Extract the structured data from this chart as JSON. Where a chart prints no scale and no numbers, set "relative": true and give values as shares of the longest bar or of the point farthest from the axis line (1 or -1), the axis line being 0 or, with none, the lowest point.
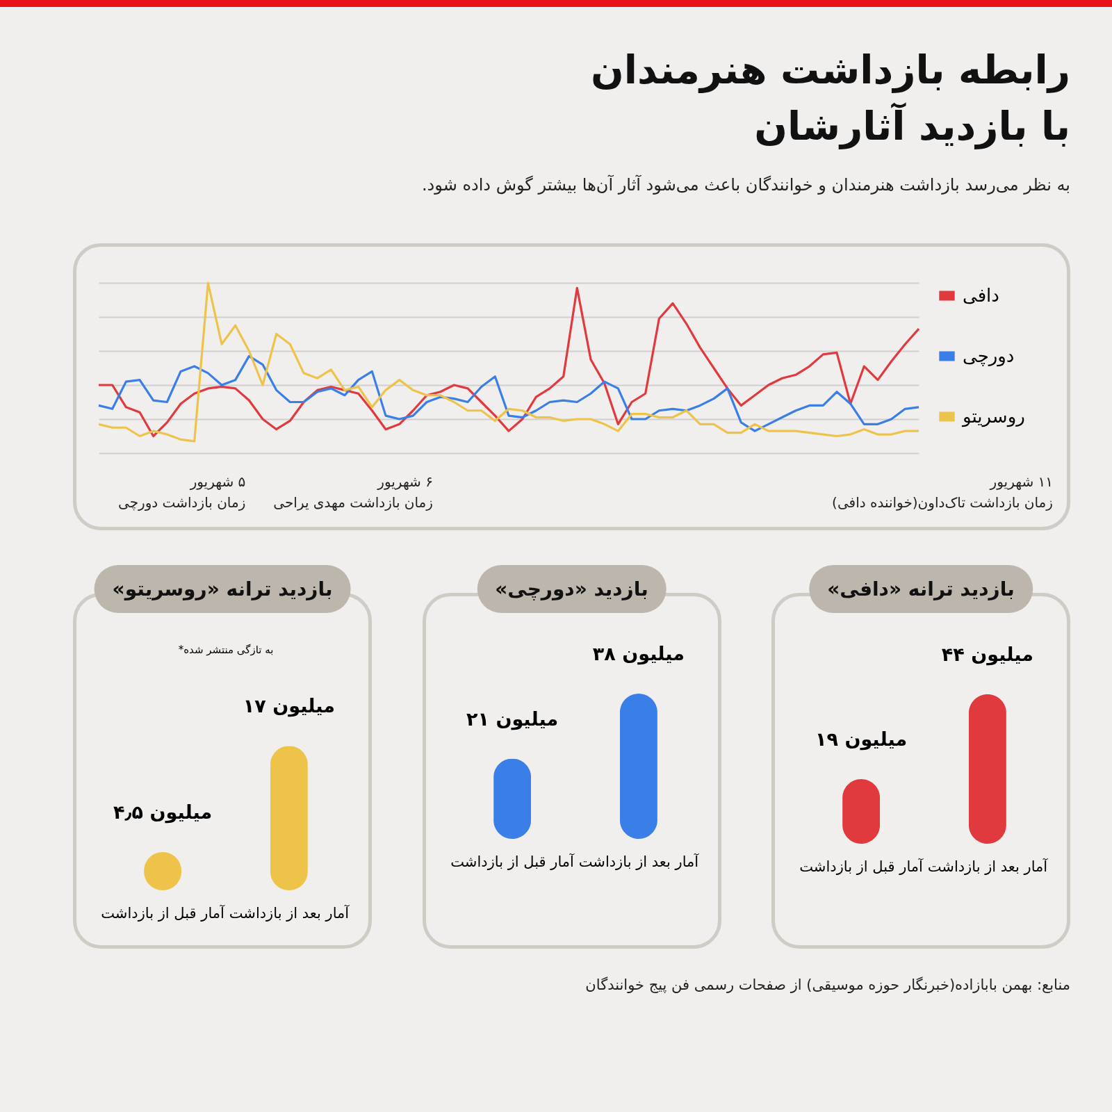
{
  "chart_data": [
    {
      "type": "line",
      "title": "رابطه بازداشت هنرمندان با بازدید آثارشان",
      "subtitle": "به نظر می‌رسد بازداشت هنرمندان و خوانندگان باعث می‌شود آثار آن‌ها بیشتر گوش داده شود.",
      "relative": true,
      "grid": "y",
      "legend": "right",
      "line_style": "solid",
      "categories": [
        null,
        null,
        null,
        null,
        null,
        null,
        null,
        null,
        null,
        null,
        null,
        null,
        null,
        null,
        null,
        null,
        null,
        null,
        null,
        null,
        null,
        null,
        null,
        null,
        null,
        null,
        null,
        null,
        null,
        null,
        null,
        null,
        null,
        null,
        null,
        null,
        null,
        null,
        null,
        null,
        null,
        null,
        null,
        null,
        null,
        null,
        null,
        null,
        null,
        null,
        null,
        null,
        null,
        null,
        null,
        null,
        null,
        null,
        null,
        null,
        null
      ],
      "series": [
        {
          "name": "دافی",
          "color": "#e0393e",
          "values": [
            0.4,
            0.4,
            0.27,
            0.24,
            0.1,
            0.18,
            0.29,
            0.35,
            0.38,
            0.39,
            0.38,
            0.31,
            0.2,
            0.14,
            0.19,
            0.3,
            0.37,
            0.39,
            0.37,
            0.35,
            0.25,
            0.14,
            0.17,
            0.25,
            0.34,
            0.36,
            0.4,
            0.38,
            0.3,
            0.22,
            0.13,
            0.2,
            0.33,
            0.38,
            0.45,
            0.97,
            0.55,
            0.41,
            0.17,
            0.3,
            0.35,
            0.79,
            0.88,
            0.76,
            0.62,
            0.5,
            0.38,
            0.28,
            0.34,
            0.4,
            0.44,
            0.46,
            0.51,
            0.58,
            0.59,
            0.29,
            0.51,
            0.43,
            0.54,
            0.64,
            0.73
          ]
        },
        {
          "name": "دورچی",
          "color": "#3a7ee8",
          "values": [
            0.28,
            0.26,
            0.42,
            0.43,
            0.31,
            0.3,
            0.48,
            0.51,
            0.47,
            0.4,
            0.43,
            0.57,
            0.52,
            0.37,
            0.3,
            0.3,
            0.36,
            0.38,
            0.34,
            0.43,
            0.48,
            0.22,
            0.2,
            0.22,
            0.3,
            0.33,
            0.32,
            0.3,
            0.39,
            0.45,
            0.22,
            0.21,
            0.25,
            0.3,
            0.31,
            0.3,
            0.35,
            0.42,
            0.38,
            0.2,
            0.2,
            0.25,
            0.26,
            0.25,
            0.28,
            0.32,
            0.38,
            0.18,
            0.13,
            0.17,
            0.21,
            0.25,
            0.28,
            0.28,
            0.36,
            0.29,
            0.17,
            0.17,
            0.2,
            0.26,
            0.27
          ]
        },
        {
          "name": "روسریتو",
          "color": "#eec34a",
          "values": [
            0.17,
            0.15,
            0.15,
            0.1,
            0.13,
            0.11,
            0.08,
            0.07,
            1,
            0.64,
            0.75,
            0.6,
            0.4,
            0.7,
            0.64,
            0.47,
            0.44,
            0.49,
            0.37,
            0.39,
            0.27,
            0.37,
            0.43,
            0.37,
            0.34,
            0.34,
            0.3,
            0.25,
            0.25,
            0.19,
            0.26,
            0.25,
            0.21,
            0.21,
            0.19,
            0.2,
            0.2,
            0.17,
            0.13,
            0.23,
            0.23,
            0.21,
            0.21,
            0.25,
            0.17,
            0.17,
            0.12,
            0.12,
            0.17,
            0.13,
            0.13,
            0.13,
            0.12,
            0.11,
            0.1,
            0.11,
            0.14,
            0.11,
            0.11,
            0.13,
            0.13
          ]
        }
      ],
      "annotations": [
        "۵ شهریور\nزمان بازداشت دورچی",
        "۶ شهریور\nزمان بازداشت مهدی یراحی",
        "۱۱ شهریور\nزمان بازداشت تاک‌داون(خواننده دافی)",
        "منابع: بهمن بابازاده(خبرنگار حوزه موسیقی) از صفحات رسمی فن پیج خوانندگان"
      ]
    },
    {
      "type": "bar",
      "title": "بازدید ترانه «دافی»",
      "categories": [
        "آمار قبل از بازداشت",
        "آمار بعد از بازداشت"
      ],
      "values": [
        19,
        44
      ],
      "colors": [
        "#e0393e",
        "#e0393e"
      ],
      "value_labels": [
        "۱۹ میلیون",
        "۴۴ میلیون"
      ]
    },
    {
      "type": "bar",
      "title": "بازدید «دورچی»",
      "categories": [
        "آمار قبل از بازداشت",
        "آمار بعد از بازداشت"
      ],
      "values": [
        21,
        38
      ],
      "colors": [
        "#3a7ee8",
        "#3a7ee8"
      ],
      "value_labels": [
        "۲۱ میلیون",
        "۳۸ میلیون"
      ]
    },
    {
      "type": "bar",
      "title": "بازدید ترانه «روسریتو»",
      "categories": [
        "آمار قبل از بازداشت",
        "آمار بعد از بازداشت"
      ],
      "values": [
        4.5,
        17
      ],
      "colors": [
        "#eec34a",
        "#eec34a"
      ],
      "value_labels": [
        "۴٫۵ میلیون",
        "۱۷ میلیون"
      ],
      "annotations": [
        "*به تازگی منتشر شده"
      ]
    }
  ]
}
